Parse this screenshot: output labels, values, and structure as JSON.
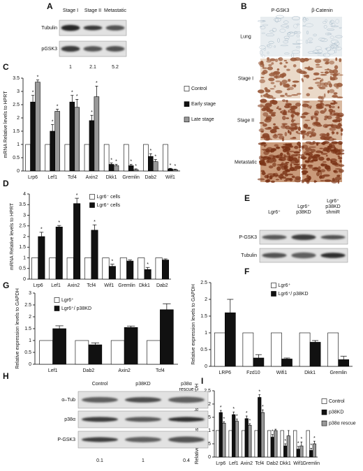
{
  "chart_data": [
    {
      "type": "bar",
      "panel": "C",
      "ylabel": "mRNA Relative levels to HPRT",
      "legend": "right",
      "categories": [
        "Lrp6",
        "Lef1",
        "Tcf4",
        "Axin2",
        "Dkk1",
        "Gremlin",
        "Dab2",
        "Wif1"
      ],
      "series": [
        {
          "name": "Control",
          "color": "#ffffff",
          "values": [
            1,
            1,
            1,
            1,
            1,
            1,
            1,
            1
          ]
        },
        {
          "name": "Early stage",
          "color": "#111111",
          "values": [
            2.6,
            1.5,
            2.6,
            1.9,
            0.25,
            0.2,
            0.55,
            0.08
          ],
          "errors": [
            0.25,
            0.25,
            0.25,
            0.2,
            0.05,
            0.05,
            0.1,
            0.02
          ],
          "annotations": [
            "*",
            "*",
            "*",
            "*",
            "*",
            "*",
            "*",
            "*"
          ]
        },
        {
          "name": "Late stage",
          "color": "#999999",
          "values": [
            3.35,
            2.25,
            2.4,
            2.8,
            0.2,
            0.05,
            0.35,
            0.05
          ],
          "errors": [
            0.08,
            0.08,
            0.3,
            0.4,
            0.05,
            0.03,
            0.08,
            0.02
          ],
          "annotations": [
            "*",
            "*",
            "*",
            "*",
            "*",
            "*",
            "*",
            "*"
          ]
        }
      ],
      "ylim": [
        0,
        3.5
      ],
      "yticks": [
        0,
        0.5,
        1,
        1.5,
        2,
        2.5,
        3,
        3.5
      ]
    },
    {
      "type": "bar",
      "panel": "D",
      "ylabel": "mRNA Relative levels to HPRT",
      "legend": "upper-center",
      "categories": [
        "Lrp6",
        "Lef1",
        "Axin2",
        "Tcf4",
        "Wif1",
        "Gremlin",
        "Dkk1",
        "Dab2"
      ],
      "series": [
        {
          "name": "Lgr6⁻ cells",
          "color": "#ffffff",
          "values": [
            1,
            1,
            1,
            1,
            1,
            1,
            1,
            1
          ]
        },
        {
          "name": "Lgr6⁺ cells",
          "color": "#111111",
          "values": [
            2.0,
            2.45,
            3.55,
            2.3,
            0.6,
            0.85,
            0.45,
            0.9
          ],
          "errors": [
            0.2,
            0.07,
            0.25,
            0.25,
            0.1,
            0.05,
            0.1,
            0.05
          ],
          "annotations": [
            "*",
            "*",
            "*",
            "*",
            "*",
            null,
            "*",
            null
          ]
        }
      ],
      "ylim": [
        0,
        4
      ],
      "yticks": [
        0,
        0.5,
        1,
        1.5,
        2,
        2.5,
        3,
        3.5,
        4
      ]
    },
    {
      "type": "bar",
      "panel": "F",
      "ylabel": "Relative expression levels to GAPDH",
      "legend": "upper-center",
      "categories": [
        "LRP6",
        "Fzd10",
        "Wifi1",
        "Dkk1",
        "Gremlin"
      ],
      "series": [
        {
          "name": "Lgr6⁺",
          "color": "#ffffff",
          "values": [
            1,
            1,
            1,
            1,
            1
          ]
        },
        {
          "name": "Lgr6⁺/ p38KD",
          "color": "#111111",
          "values": [
            1.6,
            0.25,
            0.22,
            0.72,
            0.2
          ],
          "errors": [
            0.4,
            0.1,
            0.03,
            0.05,
            0.1
          ]
        }
      ],
      "ylim": [
        0,
        2.5
      ],
      "yticks": [
        0,
        0.5,
        1,
        1.5,
        2,
        2.5
      ]
    },
    {
      "type": "bar",
      "panel": "G",
      "ylabel": "Relative expression levels to GAPDH",
      "legend": "upper-left",
      "categories": [
        "Lef1",
        "Dab2",
        "Axin2",
        "Tcf4"
      ],
      "series": [
        {
          "name": "Lgr6⁺",
          "color": "#ffffff",
          "values": [
            1,
            1,
            1,
            1
          ]
        },
        {
          "name": "Lgr6⁺/ p38KD",
          "color": "#111111",
          "values": [
            1.5,
            0.82,
            1.55,
            2.3
          ],
          "errors": [
            0.12,
            0.08,
            0.06,
            0.25
          ]
        }
      ],
      "ylim": [
        0,
        3
      ],
      "yticks": [
        0,
        0.5,
        1,
        1.5,
        2,
        2.5,
        3
      ]
    },
    {
      "type": "bar",
      "panel": "I",
      "ylabel": "Relative expression levels to GAPDH",
      "legend": "right",
      "categories": [
        "Lrp6",
        "Lef1",
        "Axin2",
        "Tcf4",
        "Dab2",
        "Dkk1",
        "Wif1",
        "Gremlin"
      ],
      "series": [
        {
          "name": "Control",
          "color": "#ffffff",
          "values": [
            1,
            1,
            1,
            1,
            1,
            1,
            1,
            1
          ]
        },
        {
          "name": "p38KD",
          "color": "#111111",
          "values": [
            1.68,
            1.6,
            1.45,
            2.25,
            0.75,
            0.42,
            0.3,
            0.25
          ],
          "errors": [
            0.08,
            0.1,
            0.1,
            0.1,
            0.1,
            0.08,
            0.1,
            0.08
          ],
          "annotations": [
            "*",
            "*",
            "*",
            "*",
            "*",
            "*",
            "*",
            "*"
          ]
        },
        {
          "name": "p38α rescue",
          "color": "#999999",
          "values": [
            1.28,
            1.35,
            1.2,
            1.68,
            1.0,
            0.8,
            0.42,
            0.5
          ],
          "errors": [
            0.05,
            0.08,
            0.06,
            0.1,
            0.05,
            0.2,
            0.15,
            0.1
          ],
          "annotations": [
            "*",
            "*",
            "*",
            "*",
            null,
            null,
            "*",
            "*"
          ]
        }
      ],
      "ylim": [
        0,
        2.5
      ],
      "yticks": [
        0,
        0.5,
        1,
        1.5,
        2,
        2.5
      ]
    }
  ],
  "blots": [
    {
      "panel": "A",
      "columns": [
        [
          "Stage I"
        ],
        [
          "Stage II"
        ],
        [
          "Metastatic"
        ]
      ],
      "rows": [
        "Tubulin",
        "pGSK3"
      ],
      "quantification": [
        "1",
        "2.1",
        "5.2"
      ]
    },
    {
      "panel": "E",
      "columns": [
        [
          "Lgr6⁺"
        ],
        [
          "Lgr6⁺",
          "p38KD"
        ],
        [
          "Lgr6⁺",
          "p38KD",
          "shmiR"
        ]
      ],
      "rows": [
        "P-GSK3",
        "Tubulin"
      ]
    },
    {
      "panel": "H",
      "columns": [
        [
          "Control"
        ],
        [
          "p38KD"
        ],
        [
          "p38α",
          "rescue"
        ]
      ],
      "rows": [
        "α–Tub",
        "p38α",
        "P-GSK3"
      ],
      "quantification": [
        "0.1",
        "1",
        "0.4"
      ]
    }
  ],
  "histology": {
    "panel": "B",
    "columns": [
      "P-GSK3",
      "β-Catenin"
    ],
    "rows": [
      "Lung",
      "Stage I",
      "Stage II",
      "Metastatic"
    ]
  }
}
